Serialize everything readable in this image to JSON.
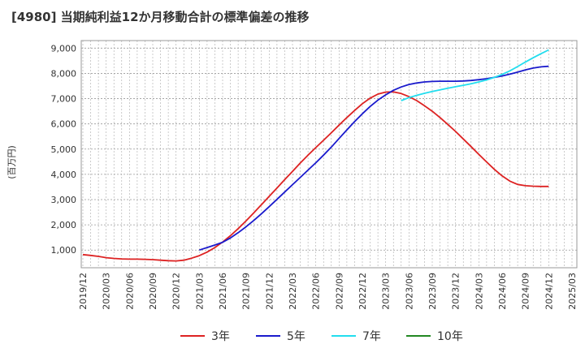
{
  "chart_data": {
    "type": "line",
    "title": "[4980]  当期純利益12か月移動合計の標準偏差の推移",
    "ylabel": "(百万円)",
    "xlabel": "",
    "ylim": [
      300,
      9300
    ],
    "yticks": [
      1000,
      2000,
      3000,
      4000,
      5000,
      6000,
      7000,
      8000,
      9000
    ],
    "ytick_labels": [
      "1,000",
      "2,000",
      "3,000",
      "4,000",
      "5,000",
      "6,000",
      "7,000",
      "8,000",
      "9,000"
    ],
    "xticks": [
      "2019/12",
      "2020/03",
      "2020/06",
      "2020/09",
      "2020/12",
      "2021/03",
      "2021/06",
      "2021/09",
      "2021/12",
      "2022/03",
      "2022/06",
      "2022/09",
      "2022/12",
      "2023/03",
      "2023/06",
      "2023/09",
      "2023/12",
      "2024/03",
      "2024/06",
      "2024/09",
      "2024/12",
      "2025/03"
    ],
    "grid": true,
    "legend_position": "bottom",
    "series": [
      {
        "name": "3年",
        "color": "#dd2222",
        "points": [
          [
            "2019/12",
            820
          ],
          [
            "2020/01",
            790
          ],
          [
            "2020/02",
            750
          ],
          [
            "2020/03",
            700
          ],
          [
            "2020/04",
            670
          ],
          [
            "2020/05",
            650
          ],
          [
            "2020/06",
            640
          ],
          [
            "2020/07",
            640
          ],
          [
            "2020/08",
            635
          ],
          [
            "2020/09",
            620
          ],
          [
            "2020/10",
            600
          ],
          [
            "2020/11",
            580
          ],
          [
            "2020/12",
            570
          ],
          [
            "2021/01",
            600
          ],
          [
            "2021/02",
            680
          ],
          [
            "2021/03",
            780
          ],
          [
            "2021/04",
            920
          ],
          [
            "2021/05",
            1100
          ],
          [
            "2021/06",
            1320
          ],
          [
            "2021/07",
            1570
          ],
          [
            "2021/08",
            1850
          ],
          [
            "2021/09",
            2150
          ],
          [
            "2021/10",
            2470
          ],
          [
            "2021/11",
            2800
          ],
          [
            "2021/12",
            3130
          ],
          [
            "2022/01",
            3460
          ],
          [
            "2022/02",
            3790
          ],
          [
            "2022/03",
            4120
          ],
          [
            "2022/04",
            4450
          ],
          [
            "2022/05",
            4760
          ],
          [
            "2022/06",
            5060
          ],
          [
            "2022/07",
            5350
          ],
          [
            "2022/08",
            5650
          ],
          [
            "2022/09",
            5950
          ],
          [
            "2022/10",
            6250
          ],
          [
            "2022/11",
            6530
          ],
          [
            "2022/12",
            6800
          ],
          [
            "2023/01",
            7020
          ],
          [
            "2023/02",
            7180
          ],
          [
            "2023/03",
            7260
          ],
          [
            "2023/04",
            7270
          ],
          [
            "2023/05",
            7200
          ],
          [
            "2023/06",
            7080
          ],
          [
            "2023/07",
            6920
          ],
          [
            "2023/08",
            6720
          ],
          [
            "2023/09",
            6500
          ],
          [
            "2023/10",
            6250
          ],
          [
            "2023/11",
            5980
          ],
          [
            "2023/12",
            5700
          ],
          [
            "2024/01",
            5400
          ],
          [
            "2024/02",
            5100
          ],
          [
            "2024/03",
            4790
          ],
          [
            "2024/04",
            4490
          ],
          [
            "2024/05",
            4200
          ],
          [
            "2024/06",
            3940
          ],
          [
            "2024/07",
            3730
          ],
          [
            "2024/08",
            3600
          ],
          [
            "2024/09",
            3550
          ],
          [
            "2024/10",
            3530
          ],
          [
            "2024/11",
            3520
          ],
          [
            "2024/12",
            3520
          ]
        ]
      },
      {
        "name": "5年",
        "color": "#1a1acc",
        "points": [
          [
            "2021/03",
            1000
          ],
          [
            "2021/04",
            1100
          ],
          [
            "2021/05",
            1200
          ],
          [
            "2021/06",
            1310
          ],
          [
            "2021/07",
            1480
          ],
          [
            "2021/08",
            1690
          ],
          [
            "2021/09",
            1920
          ],
          [
            "2021/10",
            2170
          ],
          [
            "2021/11",
            2440
          ],
          [
            "2021/12",
            2720
          ],
          [
            "2022/01",
            3010
          ],
          [
            "2022/02",
            3300
          ],
          [
            "2022/03",
            3590
          ],
          [
            "2022/04",
            3880
          ],
          [
            "2022/05",
            4170
          ],
          [
            "2022/06",
            4460
          ],
          [
            "2022/07",
            4760
          ],
          [
            "2022/08",
            5080
          ],
          [
            "2022/09",
            5420
          ],
          [
            "2022/10",
            5760
          ],
          [
            "2022/11",
            6090
          ],
          [
            "2022/12",
            6400
          ],
          [
            "2023/01",
            6690
          ],
          [
            "2023/02",
            6940
          ],
          [
            "2023/03",
            7150
          ],
          [
            "2023/04",
            7330
          ],
          [
            "2023/05",
            7460
          ],
          [
            "2023/06",
            7560
          ],
          [
            "2023/07",
            7620
          ],
          [
            "2023/08",
            7660
          ],
          [
            "2023/09",
            7680
          ],
          [
            "2023/10",
            7690
          ],
          [
            "2023/11",
            7690
          ],
          [
            "2023/12",
            7690
          ],
          [
            "2024/01",
            7700
          ],
          [
            "2024/02",
            7720
          ],
          [
            "2024/03",
            7750
          ],
          [
            "2024/04",
            7790
          ],
          [
            "2024/05",
            7840
          ],
          [
            "2024/06",
            7900
          ],
          [
            "2024/07",
            7970
          ],
          [
            "2024/08",
            8050
          ],
          [
            "2024/09",
            8140
          ],
          [
            "2024/10",
            8210
          ],
          [
            "2024/11",
            8260
          ],
          [
            "2024/12",
            8280
          ]
        ]
      },
      {
        "name": "7年",
        "color": "#22ddee",
        "points": [
          [
            "2023/05",
            6920
          ],
          [
            "2023/06",
            7040
          ],
          [
            "2023/07",
            7130
          ],
          [
            "2023/08",
            7210
          ],
          [
            "2023/09",
            7280
          ],
          [
            "2023/10",
            7350
          ],
          [
            "2023/11",
            7410
          ],
          [
            "2023/12",
            7470
          ],
          [
            "2024/01",
            7530
          ],
          [
            "2024/02",
            7590
          ],
          [
            "2024/03",
            7660
          ],
          [
            "2024/04",
            7740
          ],
          [
            "2024/05",
            7840
          ],
          [
            "2024/06",
            7960
          ],
          [
            "2024/07",
            8100
          ],
          [
            "2024/08",
            8270
          ],
          [
            "2024/09",
            8450
          ],
          [
            "2024/10",
            8620
          ],
          [
            "2024/11",
            8780
          ],
          [
            "2024/12",
            8930
          ]
        ]
      },
      {
        "name": "10年",
        "color": "#228822",
        "points": []
      }
    ]
  }
}
